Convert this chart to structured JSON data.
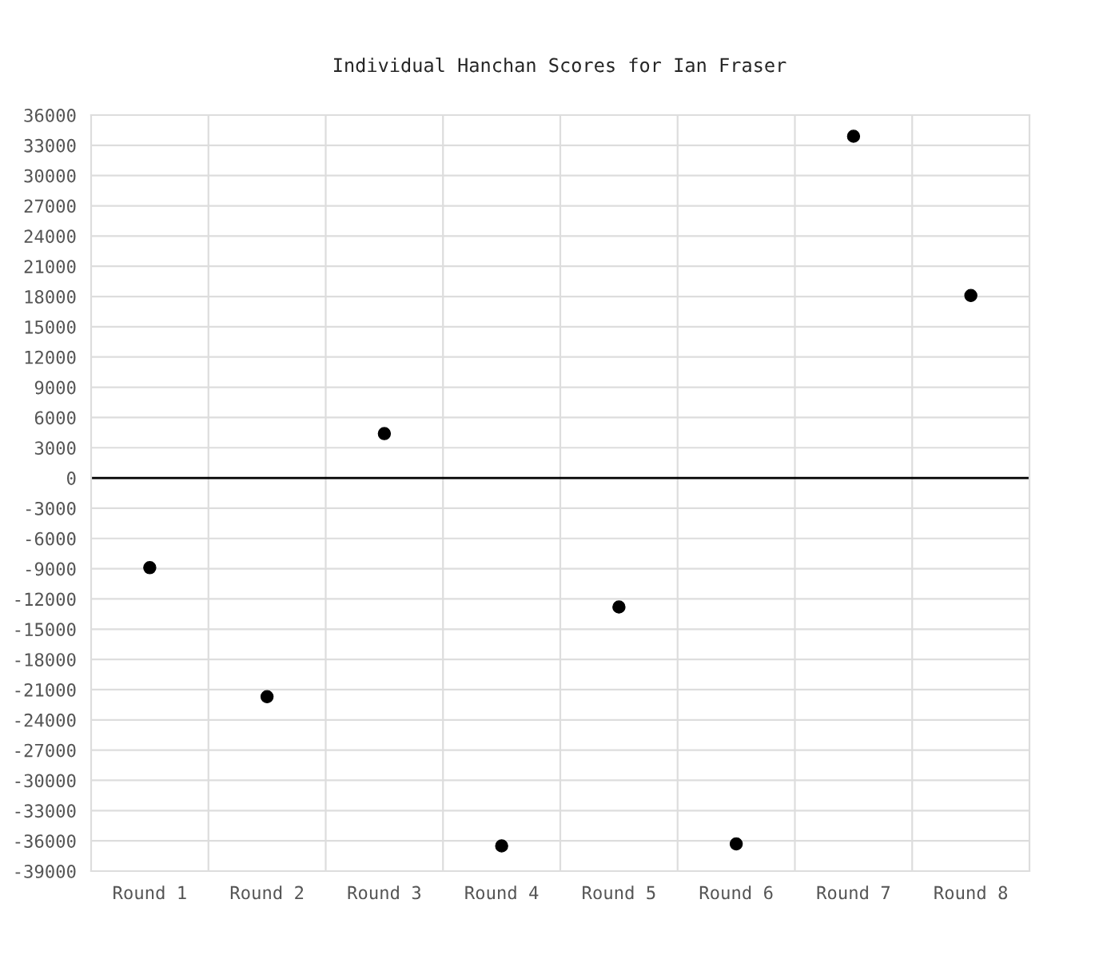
{
  "chart_data": {
    "type": "scatter",
    "title": "Individual Hanchan Scores for Ian Fraser",
    "categories": [
      "Round 1",
      "Round 2",
      "Round 3",
      "Round 4",
      "Round 5",
      "Round 6",
      "Round 7",
      "Round 8"
    ],
    "series": [
      {
        "color": "#000000",
        "values": [
          -8900,
          -21700,
          4400,
          -36500,
          -12800,
          -36300,
          33900,
          18100
        ]
      }
    ],
    "ylim": [
      -39000,
      36000
    ],
    "yticks": [
      -39000,
      -36000,
      -33000,
      -30000,
      -27000,
      -24000,
      -21000,
      -18000,
      -15000,
      -12000,
      -9000,
      -6000,
      -3000,
      0,
      3000,
      6000,
      9000,
      12000,
      15000,
      18000,
      21000,
      24000,
      27000,
      30000,
      33000,
      36000
    ],
    "ref_lines": [
      {
        "axis": "y",
        "value": 0,
        "color": "#000000"
      }
    ],
    "grid": true,
    "marker": "circle",
    "legend": false
  }
}
